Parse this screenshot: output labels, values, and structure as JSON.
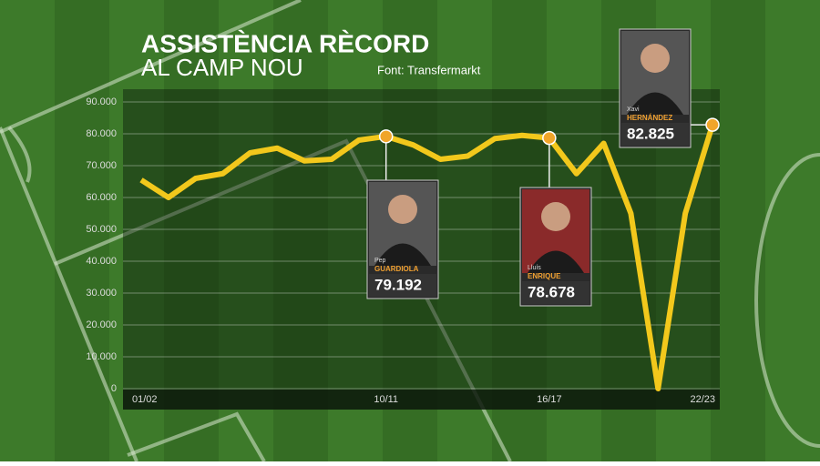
{
  "chart_data": {
    "type": "line",
    "title": [
      "ASSISTÈNCIA RÈCORD",
      "AL CAMP NOU"
    ],
    "source": "Font: Transfermarkt",
    "categories": [
      "01/02",
      null,
      null,
      null,
      null,
      null,
      null,
      null,
      null,
      "10/11",
      null,
      null,
      null,
      null,
      null,
      "16/17",
      null,
      null,
      null,
      null,
      null,
      "22/23"
    ],
    "series": [
      {
        "name": null,
        "color": "#f2c81c",
        "values": [
          65500,
          60000,
          66000,
          67500,
          74000,
          75500,
          71500,
          72000,
          78000,
          79192,
          76500,
          72000,
          73000,
          78500,
          79500,
          78678,
          67500,
          77000,
          55000,
          0,
          55000,
          82825
        ],
        "value_labels": [
          null,
          null,
          null,
          null,
          null,
          null,
          null,
          null,
          null,
          "79.192",
          null,
          null,
          null,
          null,
          null,
          "78.678",
          null,
          null,
          null,
          null,
          null,
          "82.825"
        ]
      }
    ],
    "annotations": [
      {
        "first": "Pep",
        "last": "GUARDIOLA"
      },
      {
        "first": "Lluís",
        "last": "ENRIQUE"
      },
      {
        "first": "Xavi",
        "last": "HERNÁNDEZ"
      }
    ],
    "ylim": [
      0,
      90000
    ],
    "yticks": [
      0,
      {
        "value": 10000,
        "label": "10.000"
      },
      {
        "value": 20000,
        "label": "20.000"
      },
      {
        "value": 30000,
        "label": "30.000"
      },
      {
        "value": 40000,
        "label": "40.000"
      },
      {
        "value": 50000,
        "label": "50.000"
      },
      {
        "value": 60000,
        "label": "60.000"
      },
      {
        "value": 70000,
        "label": "70.000"
      },
      {
        "value": 80000,
        "label": "80.000"
      },
      {
        "value": 90000,
        "label": "90.000"
      }
    ],
    "grid": true
  }
}
